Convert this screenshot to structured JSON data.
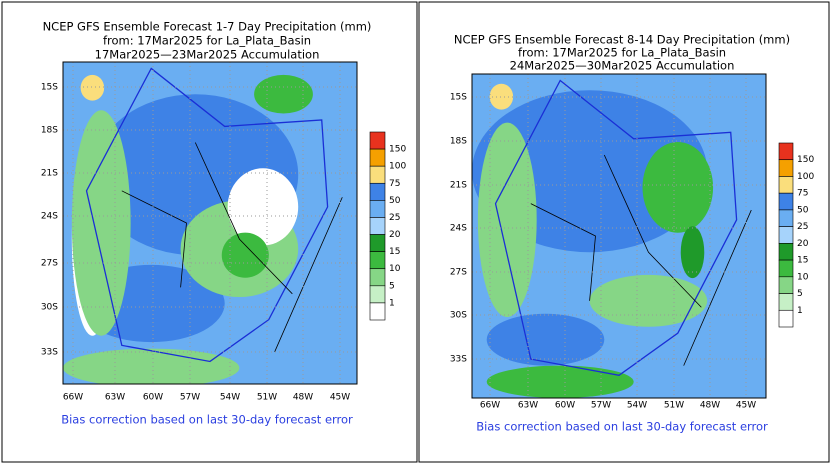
{
  "panels": [
    {
      "title_lines": [
        "NCEP GFS Ensemble Forecast 1-7 Day Precipitation (mm)",
        "from: 17Mar2025  for La_Plata_Basin",
        "17Mar2025—23Mar2025 Accumulation"
      ],
      "lat_labels": [
        "15S",
        "18S",
        "21S",
        "24S",
        "27S",
        "30S",
        "33S"
      ],
      "lon_labels": [
        "66W",
        "63W",
        "60W",
        "57W",
        "54W",
        "51W",
        "48W",
        "45W"
      ],
      "colorbar_labels": [
        150,
        100,
        75,
        50,
        25,
        20,
        15,
        10,
        5,
        1
      ],
      "note": "Bias correction based on last 30-day forecast error"
    },
    {
      "title_lines": [
        "NCEP GFS Ensemble Forecast 8-14 Day Precipitation (mm)",
        "from: 17Mar2025  for La_Plata_Basin",
        "24Mar2025—30Mar2025 Accumulation"
      ],
      "lat_labels": [
        "15S",
        "18S",
        "21S",
        "24S",
        "27S",
        "30S",
        "33S"
      ],
      "lon_labels": [
        "66W",
        "63W",
        "60W",
        "57W",
        "54W",
        "51W",
        "48W",
        "45W"
      ],
      "colorbar_labels": [
        150,
        100,
        75,
        50,
        25,
        20,
        15,
        10,
        5,
        1
      ],
      "note": "Bias correction based on last 30-day forecast error"
    }
  ]
}
